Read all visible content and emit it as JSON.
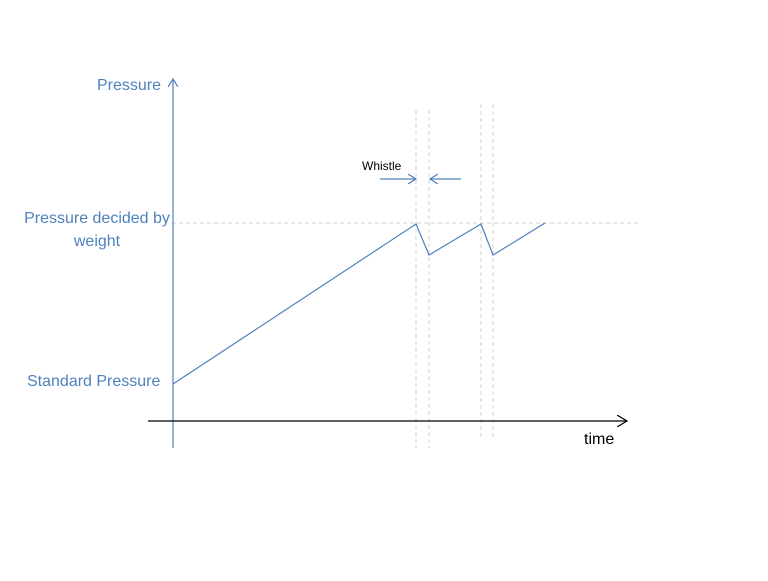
{
  "diagram": {
    "y_axis_label": "Pressure",
    "x_axis_label": "time",
    "level_high_label": "Pressure decided by weight",
    "level_low_label": "Standard Pressure",
    "annotation": "Whistle",
    "colors": {
      "axis_y": "#4f81bd",
      "curve": "#4f81bd",
      "axis_x": "#000000",
      "guide": "#d0d0d0",
      "arrows": "#4f81bd"
    }
  }
}
